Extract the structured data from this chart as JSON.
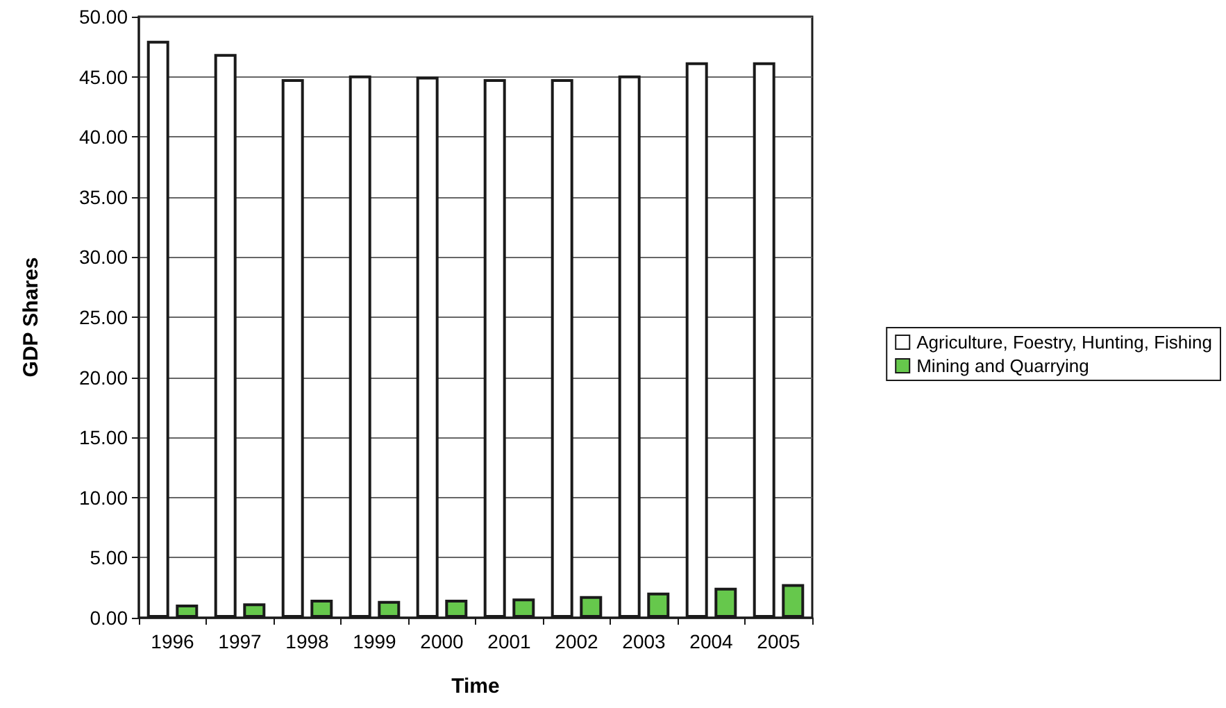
{
  "chart_data": {
    "type": "bar",
    "xlabel": "Time",
    "ylabel": "GDP Shares",
    "categories": [
      "1996",
      "1997",
      "1998",
      "1999",
      "2000",
      "2001",
      "2002",
      "2003",
      "2004",
      "2005"
    ],
    "series": [
      {
        "name": "Agriculture, Foestry, Hunting, Fishing",
        "color": "#ffffff",
        "values": [
          48.0,
          46.9,
          44.8,
          45.1,
          45.0,
          44.8,
          44.8,
          45.1,
          46.2,
          46.2
        ]
      },
      {
        "name": "Mining and Quarrying",
        "color": "#66c84c",
        "values": [
          1.1,
          1.2,
          1.5,
          1.4,
          1.5,
          1.6,
          1.8,
          2.1,
          2.5,
          2.8
        ]
      }
    ],
    "ylim": [
      0,
      50
    ],
    "yticks": [
      {
        "value": 0,
        "label": "0.00"
      },
      {
        "value": 5,
        "label": "5.00"
      },
      {
        "value": 10,
        "label": "10.00"
      },
      {
        "value": 15,
        "label": "15.00"
      },
      {
        "value": 20,
        "label": "20.00"
      },
      {
        "value": 25,
        "label": "25.00"
      },
      {
        "value": 30,
        "label": "30.00"
      },
      {
        "value": 35,
        "label": "35.00"
      },
      {
        "value": 40,
        "label": "40.00"
      },
      {
        "value": 45,
        "label": "45.00"
      },
      {
        "value": 50,
        "label": "50.00"
      }
    ],
    "grid": "y",
    "legend": "right"
  }
}
